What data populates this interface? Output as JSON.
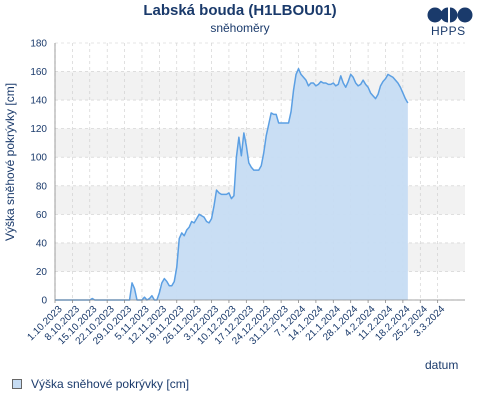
{
  "chart_data": {
    "type": "area",
    "title": "Labská bouda (H1LBOU01)",
    "subtitle": "sněhoměry",
    "xlabel": "datum",
    "ylabel": "Výška sněhové pokrývky [cm]",
    "ylim": [
      0,
      180
    ],
    "yticks": [
      0,
      20,
      40,
      60,
      80,
      100,
      120,
      140,
      160,
      180
    ],
    "xlim_days": [
      0,
      165
    ],
    "xticks": [
      "1.10.2023",
      "8.10.2023",
      "15.10.2023",
      "22.10.2023",
      "29.10.2023",
      "5.11.2023",
      "12.11.2023",
      "19.11.2023",
      "26.11.2023",
      "3.12.2023",
      "10.12.2023",
      "17.12.2023",
      "24.12.2023",
      "31.12.2023",
      "7.1.2024",
      "14.1.2024",
      "21.1.2024",
      "28.1.2024",
      "4.2.2024",
      "11.2.2024",
      "18.2.2024",
      "25.2.2024",
      "3.3.2024"
    ],
    "grid": true,
    "legend_position": "bottom-left",
    "series": [
      {
        "name": "Výška sněhové pokrývky [cm]",
        "color": "#5b9fe3",
        "fill": "#c6dcf3",
        "points": [
          [
            0,
            0
          ],
          [
            14,
            0
          ],
          [
            15,
            1
          ],
          [
            16,
            0
          ],
          [
            30,
            0
          ],
          [
            31,
            12
          ],
          [
            32,
            8
          ],
          [
            33,
            0
          ],
          [
            35,
            0
          ],
          [
            36,
            2
          ],
          [
            37,
            0
          ],
          [
            38,
            1
          ],
          [
            39,
            3
          ],
          [
            40,
            0
          ],
          [
            41,
            0
          ],
          [
            42,
            5
          ],
          [
            43,
            12
          ],
          [
            44,
            15
          ],
          [
            45,
            13
          ],
          [
            46,
            10
          ],
          [
            47,
            10
          ],
          [
            48,
            13
          ],
          [
            49,
            23
          ],
          [
            50,
            43
          ],
          [
            51,
            47
          ],
          [
            52,
            45
          ],
          [
            53,
            49
          ],
          [
            54,
            51
          ],
          [
            55,
            55
          ],
          [
            56,
            54
          ],
          [
            57,
            57
          ],
          [
            58,
            60
          ],
          [
            59,
            59
          ],
          [
            60,
            58
          ],
          [
            61,
            55
          ],
          [
            62,
            54
          ],
          [
            63,
            57
          ],
          [
            64,
            66
          ],
          [
            65,
            77
          ],
          [
            66,
            75
          ],
          [
            67,
            74
          ],
          [
            68,
            74
          ],
          [
            69,
            74
          ],
          [
            70,
            75
          ],
          [
            71,
            71
          ],
          [
            72,
            73
          ],
          [
            73,
            100
          ],
          [
            74,
            114
          ],
          [
            75,
            101
          ],
          [
            76,
            117
          ],
          [
            77,
            108
          ],
          [
            78,
            96
          ],
          [
            79,
            93
          ],
          [
            80,
            91
          ],
          [
            81,
            91
          ],
          [
            82,
            91
          ],
          [
            83,
            94
          ],
          [
            84,
            103
          ],
          [
            85,
            115
          ],
          [
            86,
            123
          ],
          [
            87,
            131
          ],
          [
            88,
            130
          ],
          [
            89,
            130
          ],
          [
            90,
            124
          ],
          [
            91,
            124
          ],
          [
            92,
            124
          ],
          [
            93,
            124
          ],
          [
            94,
            124
          ],
          [
            95,
            132
          ],
          [
            96,
            147
          ],
          [
            97,
            158
          ],
          [
            98,
            162
          ],
          [
            99,
            158
          ],
          [
            100,
            156
          ],
          [
            101,
            154
          ],
          [
            102,
            150
          ],
          [
            103,
            152
          ],
          [
            104,
            152
          ],
          [
            105,
            150
          ],
          [
            106,
            151
          ],
          [
            107,
            153
          ],
          [
            108,
            152
          ],
          [
            109,
            152
          ],
          [
            110,
            151
          ],
          [
            111,
            151
          ],
          [
            112,
            152
          ],
          [
            113,
            150
          ],
          [
            114,
            151
          ],
          [
            115,
            157
          ],
          [
            116,
            152
          ],
          [
            117,
            149
          ],
          [
            118,
            153
          ],
          [
            119,
            158
          ],
          [
            120,
            156
          ],
          [
            121,
            152
          ],
          [
            122,
            150
          ],
          [
            123,
            151
          ],
          [
            124,
            154
          ],
          [
            125,
            151
          ],
          [
            126,
            149
          ],
          [
            127,
            145
          ],
          [
            128,
            143
          ],
          [
            129,
            141
          ],
          [
            130,
            144
          ],
          [
            131,
            150
          ],
          [
            132,
            153
          ],
          [
            133,
            155
          ],
          [
            134,
            158
          ],
          [
            135,
            157
          ],
          [
            136,
            156
          ],
          [
            137,
            154
          ],
          [
            138,
            152
          ],
          [
            139,
            149
          ],
          [
            140,
            145
          ],
          [
            141,
            141
          ],
          [
            142,
            138
          ]
        ]
      }
    ]
  },
  "brand": {
    "logo_text": "HPPS",
    "color": "#1a3a6b"
  }
}
